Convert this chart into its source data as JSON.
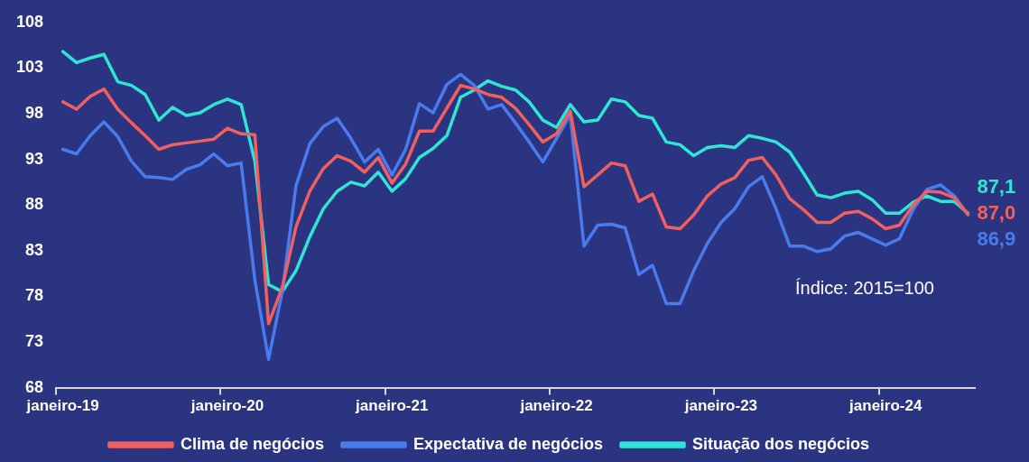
{
  "chart_data": {
    "type": "line",
    "categories": [
      "janeiro-19",
      null,
      null,
      null,
      null,
      null,
      null,
      null,
      null,
      null,
      null,
      null,
      "janeiro-20",
      null,
      null,
      null,
      null,
      null,
      null,
      null,
      null,
      null,
      null,
      null,
      "janeiro-21",
      null,
      null,
      null,
      null,
      null,
      null,
      null,
      null,
      null,
      null,
      null,
      "janeiro-22",
      null,
      null,
      null,
      null,
      null,
      null,
      null,
      null,
      null,
      null,
      null,
      "janeiro-23",
      null,
      null,
      null,
      null,
      null,
      null,
      null,
      null,
      null,
      null,
      null,
      "janeiro-24",
      null,
      null,
      null,
      null,
      null,
      null
    ],
    "series": [
      {
        "name": "Clima de negócios",
        "color": "#f0605e",
        "values": [
          99.3,
          98.5,
          99.9,
          100.7,
          98.5,
          97.0,
          95.6,
          94.1,
          94.6,
          94.8,
          95.0,
          95.2,
          96.4,
          95.8,
          95.7,
          75.0,
          79.0,
          85.6,
          89.5,
          92.0,
          93.4,
          92.8,
          91.6,
          93.2,
          90.4,
          92.5,
          96.1,
          96.1,
          98.6,
          101.1,
          100.7,
          100.1,
          99.8,
          98.6,
          96.8,
          94.9,
          95.8,
          98.3,
          90.0,
          91.3,
          92.6,
          92.3,
          88.4,
          89.2,
          85.6,
          85.4,
          86.9,
          89.0,
          90.3,
          91.0,
          92.9,
          93.2,
          91.3,
          88.7,
          87.5,
          86.1,
          86.1,
          87.1,
          87.3,
          86.5,
          85.4,
          85.8,
          88.0,
          89.5,
          89.4,
          88.8,
          87.0
        ],
        "value_labels": [
          null,
          null,
          null,
          null,
          null,
          null,
          null,
          null,
          null,
          null,
          null,
          null,
          null,
          null,
          null,
          null,
          null,
          null,
          null,
          null,
          null,
          null,
          null,
          null,
          null,
          null,
          null,
          null,
          null,
          null,
          null,
          null,
          null,
          null,
          null,
          null,
          null,
          null,
          null,
          null,
          null,
          null,
          null,
          null,
          null,
          null,
          null,
          null,
          null,
          null,
          null,
          null,
          null,
          null,
          null,
          null,
          null,
          null,
          null,
          null,
          null,
          null,
          null,
          null,
          null,
          null,
          "87,0"
        ]
      },
      {
        "name": "Expectativa de negócios",
        "color": "#4a7bec",
        "values": [
          94.1,
          93.6,
          95.6,
          97.1,
          95.5,
          92.8,
          91.1,
          91.0,
          90.8,
          91.9,
          92.4,
          93.6,
          92.3,
          92.6,
          79.8,
          71.1,
          78.5,
          90.1,
          94.7,
          96.6,
          97.5,
          95.3,
          92.7,
          94.1,
          91.3,
          94.1,
          99.1,
          98.1,
          101.2,
          102.3,
          101.1,
          98.5,
          99.0,
          97.0,
          94.9,
          92.7,
          95.3,
          97.9,
          83.5,
          85.8,
          85.9,
          85.5,
          80.4,
          81.4,
          77.2,
          77.2,
          80.8,
          83.8,
          86.1,
          87.6,
          90.0,
          91.1,
          87.6,
          83.5,
          83.5,
          82.9,
          83.2,
          84.6,
          85.0,
          84.3,
          83.6,
          84.3,
          87.5,
          89.7,
          90.2,
          89.0,
          86.9
        ],
        "value_labels": [
          null,
          null,
          null,
          null,
          null,
          null,
          null,
          null,
          null,
          null,
          null,
          null,
          null,
          null,
          null,
          null,
          null,
          null,
          null,
          null,
          null,
          null,
          null,
          null,
          null,
          null,
          null,
          null,
          null,
          null,
          null,
          null,
          null,
          null,
          null,
          null,
          null,
          null,
          null,
          null,
          null,
          null,
          null,
          null,
          null,
          null,
          null,
          null,
          null,
          null,
          null,
          null,
          null,
          null,
          null,
          null,
          null,
          null,
          null,
          null,
          null,
          null,
          null,
          null,
          null,
          null,
          "86,9"
        ]
      },
      {
        "name": "Situação dos negócios",
        "color": "#2ee6d6",
        "values": [
          104.8,
          103.6,
          104.1,
          104.5,
          101.5,
          101.1,
          100.1,
          97.3,
          98.7,
          97.8,
          98.1,
          99.0,
          99.6,
          99.0,
          92.8,
          79.3,
          78.5,
          80.8,
          84.5,
          87.6,
          89.5,
          90.5,
          90.1,
          91.6,
          89.5,
          90.9,
          93.2,
          94.2,
          95.6,
          99.8,
          100.6,
          101.6,
          101.0,
          100.6,
          99.3,
          97.3,
          96.5,
          99.0,
          97.1,
          97.3,
          99.6,
          99.3,
          97.8,
          97.5,
          94.9,
          94.6,
          93.4,
          94.3,
          94.5,
          94.3,
          95.6,
          95.3,
          94.9,
          93.8,
          91.5,
          89.1,
          88.8,
          89.3,
          89.5,
          88.6,
          87.1,
          87.1,
          88.3,
          89.0,
          88.4,
          88.4,
          87.1
        ],
        "value_labels": [
          null,
          null,
          null,
          null,
          null,
          null,
          null,
          null,
          null,
          null,
          null,
          null,
          null,
          null,
          null,
          null,
          null,
          null,
          null,
          null,
          null,
          null,
          null,
          null,
          null,
          null,
          null,
          null,
          null,
          null,
          null,
          null,
          null,
          null,
          null,
          null,
          null,
          null,
          null,
          null,
          null,
          null,
          null,
          null,
          null,
          null,
          null,
          null,
          null,
          null,
          null,
          null,
          null,
          null,
          null,
          null,
          null,
          null,
          null,
          null,
          null,
          null,
          null,
          null,
          null,
          null,
          "87,1"
        ]
      }
    ],
    "ylim": [
      68,
      108
    ],
    "yticks": [
      68,
      73,
      78,
      83,
      88,
      93,
      98,
      103,
      108
    ],
    "grid": false,
    "legend": "bottom",
    "marker": "none",
    "line_style": "solid",
    "annotations": [
      "Índice: 2015=100"
    ]
  }
}
